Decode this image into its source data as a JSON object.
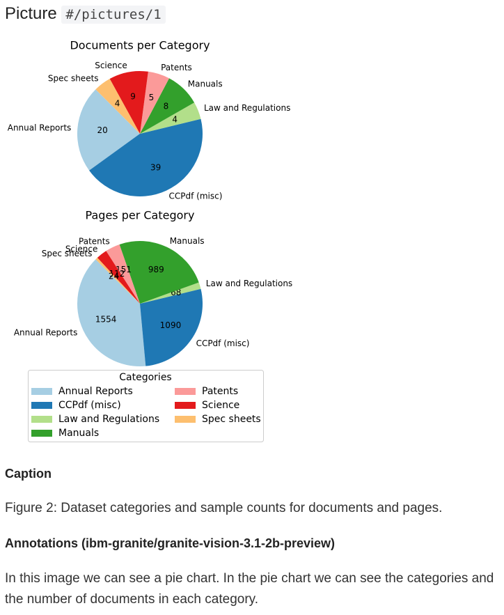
{
  "header": {
    "label": "Picture",
    "path": "#/pictures/1"
  },
  "chart_data": [
    {
      "type": "pie",
      "title": "Documents per Category",
      "categories": [
        "Annual Reports",
        "CCPdf (misc)",
        "Law and Regulations",
        "Manuals",
        "Patents",
        "Science",
        "Spec sheets"
      ],
      "values": [
        20,
        39,
        4,
        8,
        5,
        9,
        4
      ],
      "colors": [
        "#a6cee3",
        "#1f78b4",
        "#b2df8a",
        "#33a02c",
        "#fb9a99",
        "#e31a1c",
        "#fdbf6f"
      ]
    },
    {
      "type": "pie",
      "title": "Pages per Category",
      "categories": [
        "Annual Reports",
        "CCPdf (misc)",
        "Law and Regulations",
        "Manuals",
        "Patents",
        "Science",
        "Spec sheets"
      ],
      "values": [
        1554,
        1090,
        68,
        989,
        151,
        112,
        24
      ],
      "colors": [
        "#a6cee3",
        "#1f78b4",
        "#b2df8a",
        "#33a02c",
        "#fb9a99",
        "#e31a1c",
        "#fdbf6f"
      ]
    }
  ],
  "legend": {
    "title": "Categories"
  },
  "caption": {
    "heading": "Caption",
    "text": "Figure 2: Dataset categories and sample counts for documents and pages."
  },
  "annotations": {
    "heading": "Annotations (ibm-granite/granite-vision-3.1-2b-preview)",
    "text": "In this image we can see a pie chart. In the pie chart we can see the categories and the number of documents in each category."
  }
}
